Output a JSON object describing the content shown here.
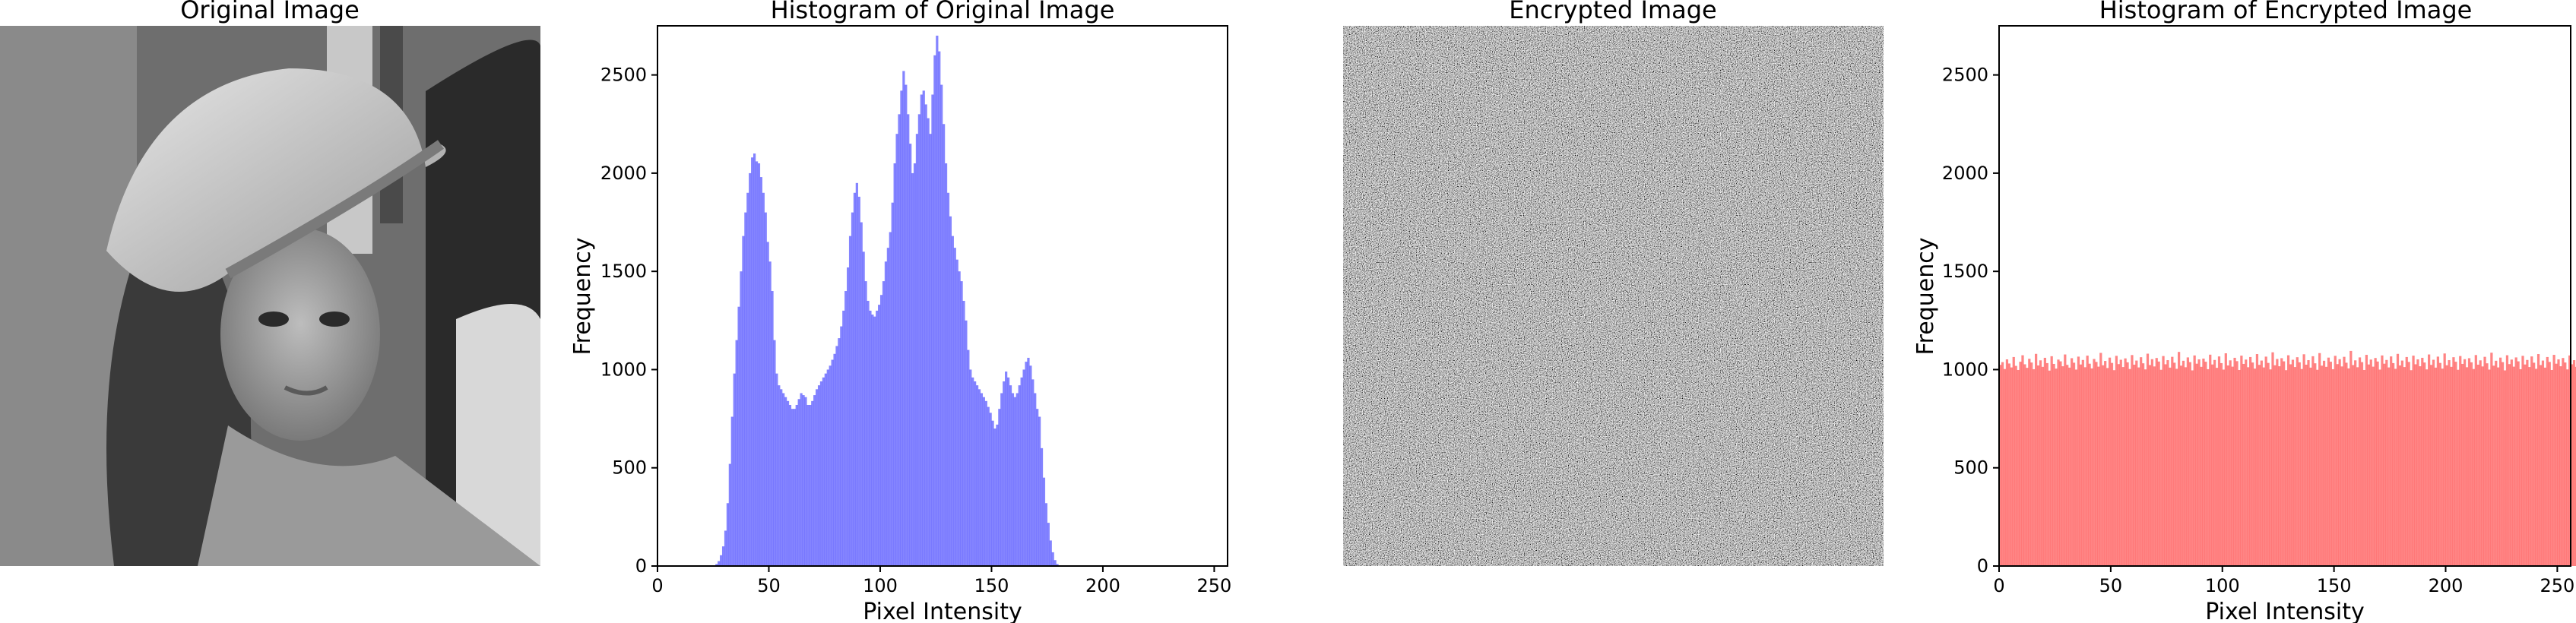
{
  "figure": {
    "panels": [
      {
        "title": "Original Image",
        "kind": "image",
        "image": "grayscale portrait photo (Lena) wearing a wide-brimmed hat"
      },
      {
        "title": "Histogram of Original Image",
        "kind": "histogram"
      },
      {
        "title": "Encrypted Image",
        "kind": "image",
        "image": "uniform random grayscale noise"
      },
      {
        "title": "Histogram of Encrypted Image",
        "kind": "histogram"
      }
    ]
  },
  "chart_data": [
    {
      "type": "bar",
      "title": "Histogram of Original Image",
      "xlabel": "Pixel Intensity",
      "ylabel": "Frequency",
      "xlim": [
        0,
        256
      ],
      "ylim": [
        0,
        2750
      ],
      "xticks": [
        0,
        50,
        100,
        150,
        200,
        250
      ],
      "yticks": [
        0,
        500,
        1000,
        1500,
        2000,
        2500
      ],
      "bin_width": 1,
      "color": "#5050ff",
      "x_start": 25,
      "values": [
        3,
        10,
        25,
        55,
        100,
        180,
        320,
        520,
        760,
        980,
        1150,
        1320,
        1500,
        1680,
        1800,
        1900,
        2000,
        2080,
        2100,
        2060,
        2050,
        1980,
        1900,
        1800,
        1650,
        1550,
        1400,
        1150,
        980,
        920,
        900,
        880,
        860,
        840,
        820,
        800,
        800,
        820,
        850,
        880,
        870,
        860,
        820,
        820,
        840,
        870,
        900,
        920,
        940,
        960,
        980,
        1000,
        1020,
        1050,
        1080,
        1120,
        1160,
        1220,
        1300,
        1400,
        1520,
        1680,
        1800,
        1900,
        1950,
        1880,
        1750,
        1600,
        1450,
        1350,
        1300,
        1280,
        1270,
        1300,
        1330,
        1380,
        1450,
        1550,
        1620,
        1700,
        1850,
        2050,
        2200,
        2300,
        2420,
        2520,
        2450,
        2300,
        2150,
        2000,
        2050,
        2200,
        2300,
        2400,
        2420,
        2350,
        2280,
        2200,
        2400,
        2600,
        2700,
        2620,
        2450,
        2250,
        2050,
        1900,
        1780,
        1680,
        1620,
        1560,
        1500,
        1450,
        1350,
        1250,
        1100,
        1000,
        960,
        940,
        920,
        900,
        880,
        860,
        840,
        810,
        780,
        740,
        700,
        720,
        800,
        880,
        940,
        990,
        960,
        920,
        880,
        860,
        880,
        920,
        960,
        1000,
        1040,
        1060,
        1020,
        950,
        880,
        800,
        760,
        600,
        450,
        320,
        220,
        130,
        70,
        30,
        10,
        3
      ]
    },
    {
      "type": "bar",
      "title": "Histogram of Encrypted Image",
      "xlabel": "Pixel Intensity",
      "ylabel": "Frequency",
      "xlim": [
        0,
        256
      ],
      "ylim": [
        0,
        2750
      ],
      "xticks": [
        0,
        50,
        100,
        150,
        200,
        250
      ],
      "yticks": [
        0,
        500,
        1000,
        1500,
        2000,
        2500
      ],
      "bin_width": 1,
      "color": "#ff5050",
      "x_start": 0,
      "values": [
        1024,
        1038,
        1003,
        1052,
        1031,
        1011,
        1064,
        1019,
        998,
        1040,
        1073,
        1027,
        1009,
        1055,
        1036,
        1002,
        1080,
        1021,
        1047,
        1014,
        1060,
        1033,
        995,
        1068,
        1029,
        1005,
        1051,
        1042,
        1017,
        1077,
        1024,
        1010,
        1058,
        1035,
        1000,
        1066,
        1026,
        1049,
        1012,
        1071,
        1030,
        1006,
        1054,
        1039,
        1015,
        1085,
        1022,
        1044,
        1008,
        1061,
        1034,
        997,
        1070,
        1028,
        1050,
        1013,
        1057,
        1037,
        1003,
        1074,
        1025,
        1046,
        1011,
        1063,
        1032,
        1001,
        1081,
        1023,
        1053,
        1016,
        1059,
        1041,
        999,
        1069,
        1027,
        1048,
        1010,
        1065,
        1035,
        1004,
        1090,
        1020,
        1045,
        1012,
        1062,
        1038,
        996,
        1072,
        1030,
        1052,
        1014,
        1056,
        1040,
        1002,
        1076,
        1026,
        1049,
        1009,
        1067,
        1033,
        1000,
        1083,
        1021,
        1047,
        1015,
        1060,
        1043,
        998,
        1071,
        1029,
        1051,
        1012,
        1064,
        1036,
        1005,
        1079,
        1024,
        1046,
        1011,
        1066,
        1034,
        1001,
        1088,
        1022,
        1054,
        1017,
        1058,
        1042,
        997,
        1073,
        1027,
        1050,
        1013,
        1063,
        1037,
        1003,
        1078,
        1025,
        1048,
        1010,
        1068,
        1032,
        999,
        1084,
        1020,
        1045,
        1014,
        1061,
        1040,
        1002,
        1070,
        1028,
        1053,
        1016,
        1065,
        1035,
        1006,
        1095,
        1023,
        1047,
        1012,
        1062,
        1038,
        998,
        1075,
        1026,
        1051,
        1015,
        1059,
        1041,
        1000,
        1072,
        1030,
        1049,
        1011,
        1067,
        1033,
        1004,
        1080,
        1021,
        1046,
        1013,
        1064,
        1039,
        997,
        1071,
        1027,
        1052,
        1017,
        1060,
        1036,
        1001,
        1077,
        1024,
        1050,
        1010,
        1066,
        1034,
        1005,
        1082,
        1022,
        1048,
        1014,
        1063,
        1040,
        999,
        1069,
        1029,
        1053,
        1012,
        1058,
        1037,
        1003,
        1074,
        1025,
        1047,
        1016,
        1065,
        1032,
        1000,
        1086,
        1020,
        1045,
        1011,
        1061,
        1038,
        996,
        1073,
        1028,
        1051,
        1015,
        1062,
        1042,
        1002,
        1070,
        1026,
        1049,
        1013,
        1067,
        1035,
        1004,
        1079,
        1023,
        1046,
        1010,
        1064,
        1039,
        998,
        1075,
        1030,
        1052,
        1017,
        1059,
        1036,
        1001,
        1072,
        1027,
        1048,
        1014,
        1063,
        1033
      ]
    }
  ]
}
